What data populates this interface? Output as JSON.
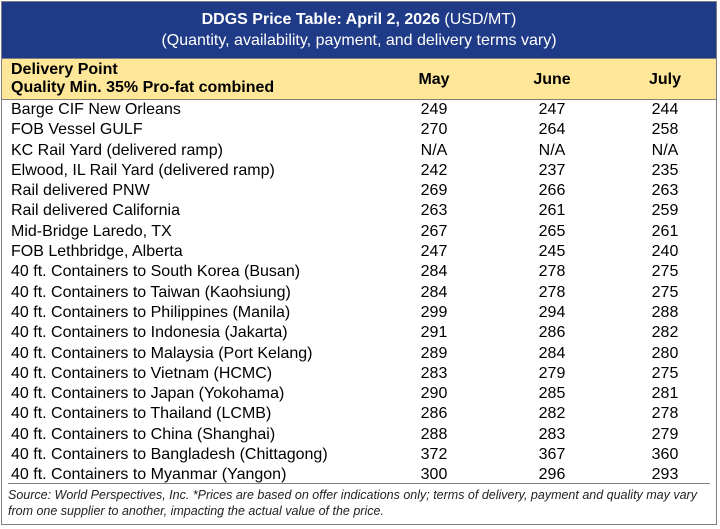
{
  "header": {
    "title": "DDGS Price Table: April 2, 2026",
    "unit": "(USD/MT)",
    "subtitle": "(Quantity, availability, payment, and delivery terms vary)"
  },
  "table": {
    "columns": {
      "delivery_point": "Delivery Point",
      "quality": "Quality Min. 35% Pro-fat combined",
      "months": [
        "May",
        "June",
        "July"
      ]
    },
    "rows": [
      [
        "Barge CIF New Orleans",
        249,
        247,
        244
      ],
      [
        "FOB Vessel GULF",
        270,
        264,
        258
      ],
      [
        "KC Rail Yard (delivered ramp)",
        "N/A",
        "N/A",
        "N/A"
      ],
      [
        "Elwood, IL Rail Yard (delivered ramp)",
        242,
        237,
        235
      ],
      [
        "Rail delivered PNW",
        269,
        266,
        263
      ],
      [
        "Rail delivered California",
        263,
        261,
        259
      ],
      [
        "Mid-Bridge Laredo, TX",
        267,
        265,
        261
      ],
      [
        "FOB Lethbridge, Alberta",
        247,
        245,
        240
      ],
      [
        "40 ft. Containers to South Korea (Busan)",
        284,
        278,
        275
      ],
      [
        "40 ft. Containers to Taiwan (Kaohsiung)",
        284,
        278,
        275
      ],
      [
        "40 ft. Containers to Philippines (Manila)",
        299,
        294,
        288
      ],
      [
        "40 ft. Containers to Indonesia (Jakarta)",
        291,
        286,
        282
      ],
      [
        "40 ft. Containers to Malaysia (Port Kelang)",
        289,
        284,
        280
      ],
      [
        "40 ft. Containers to Vietnam (HCMC)",
        283,
        279,
        275
      ],
      [
        "40 ft. Containers to Japan (Yokohama)",
        290,
        285,
        281
      ],
      [
        "40 ft. Containers to Thailand (LCMB)",
        286,
        282,
        278
      ],
      [
        "40 ft. Containers to China (Shanghai)",
        288,
        283,
        279
      ],
      [
        "40 ft. Containers to Bangladesh (Chittagong)",
        372,
        367,
        360
      ],
      [
        "40 ft. Containers to Myanmar (Yangon)",
        300,
        296,
        293
      ]
    ]
  },
  "footer": {
    "source": "Source: World Perspectives, Inc. *Prices are based on offer indications only; terms of delivery, payment and quality may vary from one supplier to another, impacting the actual value of the price."
  }
}
